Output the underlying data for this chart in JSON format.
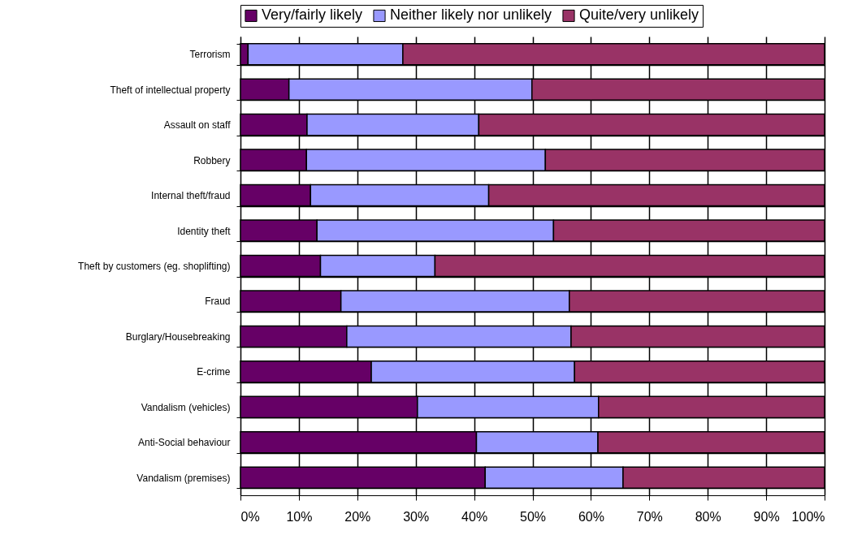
{
  "chart_data": {
    "type": "bar",
    "orientation": "horizontal",
    "stacked": true,
    "legend": "top",
    "grid": true,
    "categories": [
      "Terrorism",
      "Theft of intellectual property",
      "Assault on staff",
      "Robbery",
      "Internal theft/fraud ",
      "Identity theft",
      "Theft by customers (eg. shoplifting)",
      "Fraud",
      "Burglary/Housebreaking",
      "E-crime",
      "Vandalism (vehicles)",
      "Anti-Social behaviour",
      "Vandalism (premises)"
    ],
    "series": [
      {
        "name": "Very/fairly likely",
        "color": "#660066",
        "values": [
          1.3,
          8.3,
          11.4,
          11.3,
          12.0,
          13.1,
          13.7,
          17.2,
          18.2,
          22.4,
          30.3,
          40.4,
          41.9
        ]
      },
      {
        "name": "Neither likely nor unlikely",
        "color": "#9999ff",
        "values": [
          26.5,
          41.6,
          29.4,
          40.9,
          30.5,
          40.5,
          19.6,
          39.1,
          38.4,
          34.8,
          31.0,
          20.8,
          23.6
        ]
      },
      {
        "name": "Quite/very unlikely",
        "color": "#993366",
        "values": [
          72.2,
          50.1,
          59.2,
          47.8,
          57.5,
          46.4,
          66.7,
          43.7,
          43.4,
          42.8,
          38.7,
          38.8,
          34.5
        ]
      }
    ],
    "xlim": [
      0,
      100
    ],
    "xticks": [
      {
        "value": 0,
        "label": "0%"
      },
      {
        "value": 10,
        "label": "10%"
      },
      {
        "value": 20,
        "label": "20%"
      },
      {
        "value": 30,
        "label": "30%"
      },
      {
        "value": 40,
        "label": "40%"
      },
      {
        "value": 50,
        "label": "50%"
      },
      {
        "value": 60,
        "label": "60%"
      },
      {
        "value": 70,
        "label": "70%"
      },
      {
        "value": 80,
        "label": "80%"
      },
      {
        "value": 90,
        "label": "90%"
      },
      {
        "value": 100,
        "label": "100%"
      }
    ]
  }
}
